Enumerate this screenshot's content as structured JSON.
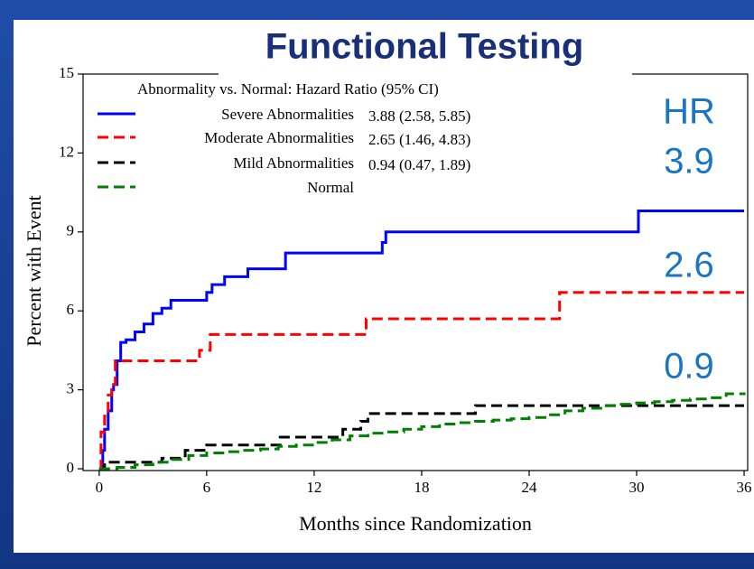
{
  "chart_data": {
    "type": "line",
    "title": "Functional Testing",
    "x_label": "Months since Randomization",
    "y_label": "Percent with Event",
    "legend_title": "Abnormality vs. Normal: Hazard Ratio (95% CI)",
    "step": true,
    "xlim": [
      -0.9,
      36.2
    ],
    "ylim": [
      0,
      15
    ],
    "xticks": [
      0,
      6,
      12,
      18,
      24,
      30,
      36
    ],
    "yticks": [
      0,
      3,
      6,
      9,
      12,
      15
    ],
    "annotations": [
      "HR",
      "3.9",
      "2.6",
      "0.9"
    ],
    "series": [
      {
        "name": "Severe Abnormalities",
        "hr": "3.88 (2.58, 5.85)",
        "color": "#0000ff",
        "dashed": false,
        "x": [
          0,
          0.2,
          0.3,
          0.5,
          0.7,
          0.8,
          1.0,
          1.2,
          1.5,
          2.0,
          2.5,
          3.0,
          3.5,
          4.0,
          6.0,
          6.3,
          7.0,
          8.3,
          10.4,
          15.8,
          16.0,
          30.1,
          36
        ],
        "values": [
          0,
          0.7,
          1.5,
          2.2,
          3.0,
          3.2,
          4.1,
          4.8,
          4.9,
          5.2,
          5.5,
          5.9,
          6.1,
          6.4,
          6.7,
          7.0,
          7.3,
          7.6,
          8.2,
          8.6,
          9.0,
          9.8,
          9.8
        ]
      },
      {
        "name": "Moderate Abnormalities",
        "hr": "2.65 (1.46, 4.83)",
        "color": "#ff0000",
        "dashed": true,
        "x": [
          0,
          0.1,
          0.3,
          0.5,
          0.7,
          0.9,
          5.6,
          6.2,
          14.9,
          25.7,
          36
        ],
        "values": [
          0,
          1.4,
          2.0,
          2.8,
          3.2,
          4.1,
          4.5,
          5.1,
          5.7,
          6.7,
          6.7
        ]
      },
      {
        "name": "Mild Abnormalities",
        "hr": "0.94 (0.47, 1.89)",
        "color": "#000000",
        "dashed": true,
        "x": [
          0,
          0.3,
          3.5,
          4.8,
          6.0,
          10.1,
          13.6,
          14.6,
          15.0,
          21.0,
          36
        ],
        "values": [
          0,
          0.25,
          0.4,
          0.7,
          0.9,
          1.2,
          1.5,
          1.8,
          2.1,
          2.4,
          2.4
        ]
      },
      {
        "name": "Normal",
        "color": "#008000",
        "dashed": true,
        "x": [
          0,
          1,
          2,
          3,
          4,
          5,
          6,
          7,
          8,
          9,
          10,
          11,
          12,
          13,
          14,
          15,
          16,
          17,
          18,
          19,
          20,
          21,
          22,
          23,
          24,
          25,
          26,
          27,
          28,
          29,
          30,
          31,
          32,
          33,
          34,
          35,
          36
        ],
        "values": [
          0,
          0.05,
          0.15,
          0.25,
          0.35,
          0.5,
          0.6,
          0.65,
          0.7,
          0.75,
          0.85,
          0.9,
          1.0,
          1.1,
          1.25,
          1.35,
          1.4,
          1.5,
          1.6,
          1.7,
          1.75,
          1.8,
          1.85,
          1.9,
          1.95,
          2.05,
          2.2,
          2.3,
          2.4,
          2.45,
          2.5,
          2.55,
          2.6,
          2.65,
          2.7,
          2.85,
          2.9
        ]
      }
    ]
  }
}
